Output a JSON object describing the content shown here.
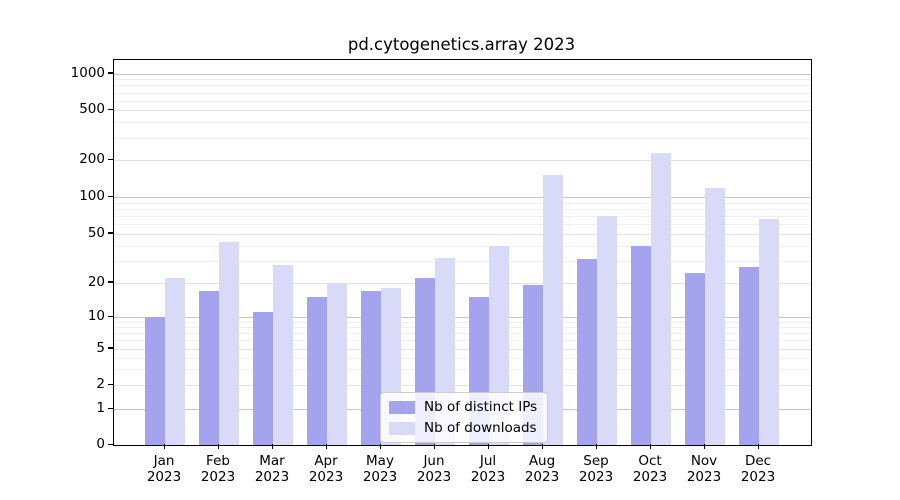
{
  "chart_data": {
    "type": "bar",
    "title": "pd.cytogenetics.array 2023",
    "categories": [
      "Jan",
      "Feb",
      "Mar",
      "Apr",
      "May",
      "Jun",
      "Jul",
      "Aug",
      "Sep",
      "Oct",
      "Nov",
      "Dec"
    ],
    "x_tick_year_line": "2023",
    "series": [
      {
        "name": "Nb of distinct IPs",
        "color": "#a3a3ee",
        "values": [
          10,
          17,
          11,
          15,
          17,
          22,
          15,
          19,
          31,
          40,
          24,
          27
        ]
      },
      {
        "name": "Nb of downloads",
        "color": "#d9d9f8",
        "values": [
          22,
          43,
          28,
          20,
          18,
          32,
          40,
          152,
          70,
          228,
          118,
          66
        ]
      }
    ],
    "yscale": "symlog",
    "y_tick_labels": [
      "0",
      "1",
      "2",
      "5",
      "10",
      "20",
      "50",
      "100",
      "200",
      "500",
      "1000"
    ],
    "ylim": [
      0,
      1300
    ],
    "xlabel": "",
    "ylabel": "",
    "grid": true,
    "legend_position": "lower center"
  }
}
